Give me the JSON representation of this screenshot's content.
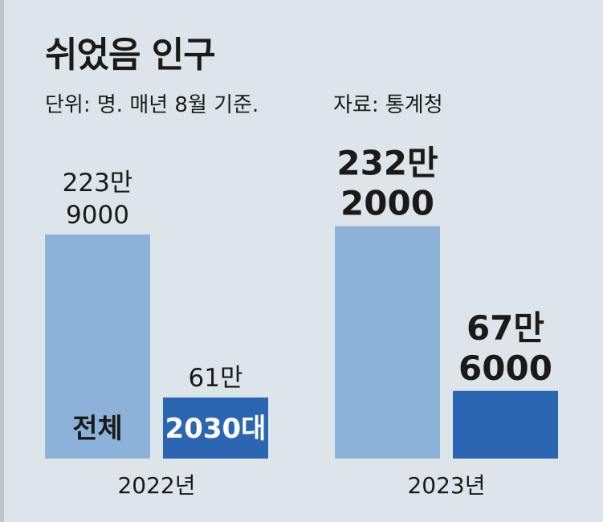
{
  "title": "쉬었음 인구",
  "subtitle": "단위: 명. 매년 8월 기준.",
  "source": "자료: 통계청",
  "colors": {
    "total": "#8cb2d9",
    "age2030": "#2b66b3",
    "background": "#dde5ea",
    "text": "#1a1a1a",
    "inbar_text_on_light": "#1a1a1a",
    "inbar_text_on_dark": "#ffffff"
  },
  "chart_data": {
    "type": "bar",
    "categories": [
      "2022년",
      "2023년"
    ],
    "series": [
      {
        "name": "전체",
        "values": [
          2239000,
          2322000
        ],
        "labels": [
          "223만\n9000",
          "232만\n2000"
        ],
        "color": "#8cb2d9"
      },
      {
        "name": "2030대",
        "values": [
          610000,
          676000
        ],
        "labels": [
          "61만",
          "67만\n6000"
        ],
        "color": "#2b66b3"
      }
    ],
    "ylim": [
      0,
      2600000
    ],
    "grid": false,
    "legend": "in-bar"
  }
}
